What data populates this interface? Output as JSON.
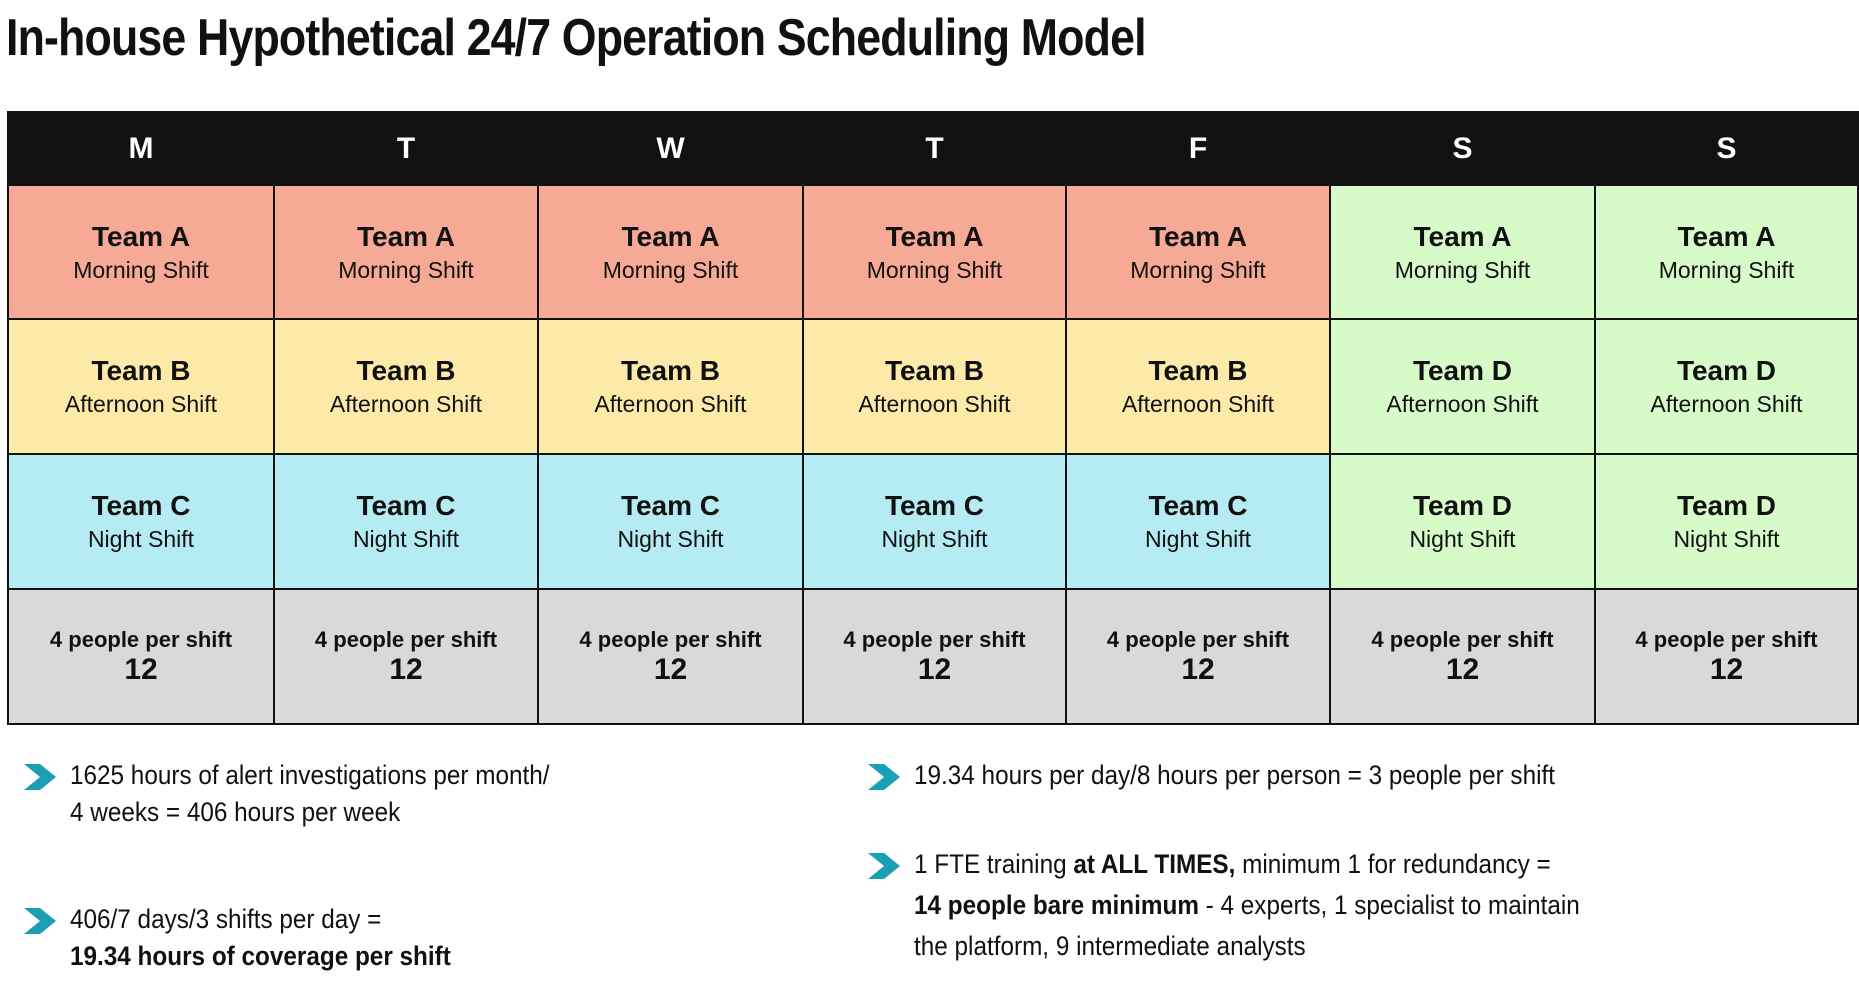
{
  "title": "In-house Hypothetical 24/7 Operation Scheduling Model",
  "table": {
    "header": [
      "M",
      "T",
      "W",
      "T",
      "F",
      "S",
      "S"
    ],
    "rows": [
      [
        {
          "team": "Team A",
          "shift": "Morning Shift",
          "color": "#f6a994"
        },
        {
          "team": "Team A",
          "shift": "Morning Shift",
          "color": "#f6a994"
        },
        {
          "team": "Team A",
          "shift": "Morning Shift",
          "color": "#f6a994"
        },
        {
          "team": "Team A",
          "shift": "Morning Shift",
          "color": "#f6a994"
        },
        {
          "team": "Team A",
          "shift": "Morning Shift",
          "color": "#f6a994"
        },
        {
          "team": "Team A",
          "shift": "Morning Shift",
          "color": "#d6fbc8"
        },
        {
          "team": "Team A",
          "shift": "Morning Shift",
          "color": "#d6fbc8"
        }
      ],
      [
        {
          "team": "Team B",
          "shift": "Afternoon Shift",
          "color": "#fde9a8"
        },
        {
          "team": "Team B",
          "shift": "Afternoon Shift",
          "color": "#fde9a8"
        },
        {
          "team": "Team B",
          "shift": "Afternoon Shift",
          "color": "#fde9a8"
        },
        {
          "team": "Team B",
          "shift": "Afternoon Shift",
          "color": "#fde9a8"
        },
        {
          "team": "Team B",
          "shift": "Afternoon Shift",
          "color": "#fde9a8"
        },
        {
          "team": "Team D",
          "shift": "Afternoon Shift",
          "color": "#d6fbc8"
        },
        {
          "team": "Team D",
          "shift": "Afternoon Shift",
          "color": "#d6fbc8"
        }
      ],
      [
        {
          "team": "Team C",
          "shift": "Night Shift",
          "color": "#b5ebf2"
        },
        {
          "team": "Team C",
          "shift": "Night Shift",
          "color": "#b5ebf2"
        },
        {
          "team": "Team C",
          "shift": "Night Shift",
          "color": "#b5ebf2"
        },
        {
          "team": "Team C",
          "shift": "Night Shift",
          "color": "#b5ebf2"
        },
        {
          "team": "Team C",
          "shift": "Night Shift",
          "color": "#b5ebf2"
        },
        {
          "team": "Team D",
          "shift": "Night Shift",
          "color": "#d6fbc8"
        },
        {
          "team": "Team D",
          "shift": "Night Shift",
          "color": "#d6fbc8"
        }
      ]
    ],
    "footer": [
      {
        "label": "4 people per shift",
        "value": "12"
      },
      {
        "label": "4 people per shift",
        "value": "12"
      },
      {
        "label": "4 people per shift",
        "value": "12"
      },
      {
        "label": "4 people per shift",
        "value": "12"
      },
      {
        "label": "4 people per shift",
        "value": "12"
      },
      {
        "label": "4 people per shift",
        "value": "12"
      },
      {
        "label": "4 people per shift",
        "value": "12"
      }
    ]
  },
  "bullets": [
    {
      "lines": [
        [
          {
            "text": "1625 hours of alert investigations per month/"
          }
        ],
        [
          {
            "text": "4 weeks = 406 hours per week"
          }
        ]
      ]
    },
    {
      "lines": [
        [
          {
            "text": "406/7 days/3 shifts per day ="
          }
        ],
        [
          {
            "text": "19.34 hours of coverage per shift",
            "bold": true
          }
        ]
      ]
    },
    {
      "lines": [
        [
          {
            "text": "19.34 hours per day/8 hours per person = 3 people per shift"
          }
        ]
      ]
    },
    {
      "lines": [
        [
          {
            "text": "1 FTE training "
          },
          {
            "text": "at ALL TIMES,",
            "bold": true
          },
          {
            "text": " minimum 1 for redundancy ="
          }
        ],
        [
          {
            "text": "14 people bare minimum",
            "bold": true
          },
          {
            "text": " - 4 experts, 1 specialist to maintain"
          }
        ],
        [
          {
            "text": "the platform, 9 intermediate analysts"
          }
        ]
      ]
    }
  ]
}
